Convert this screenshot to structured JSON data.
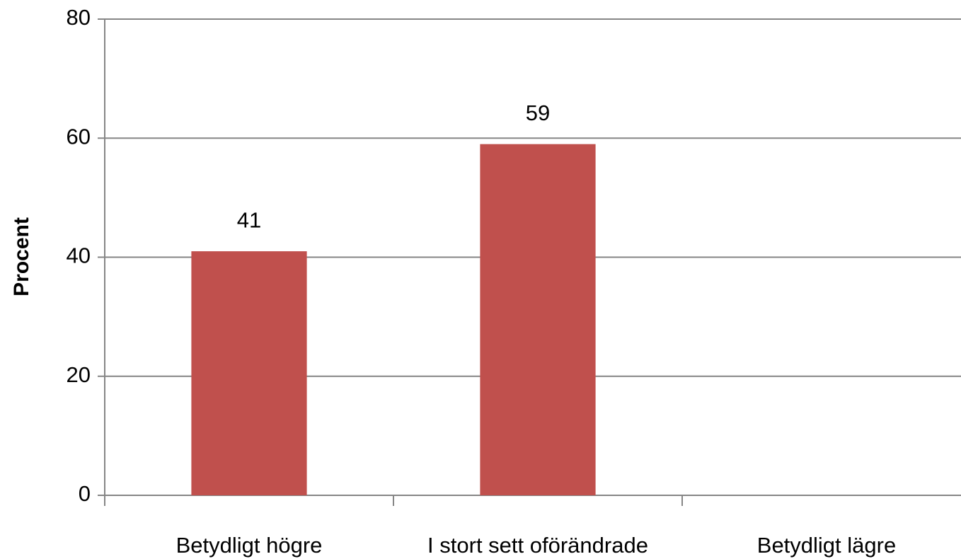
{
  "chart_data": {
    "type": "bar",
    "y_label": "Procent",
    "categories": [
      "Betydligt högre",
      "I stort sett oförändrade",
      "Betydligt lägre"
    ],
    "values": [
      41,
      59,
      null
    ],
    "color": "#c0504d",
    "ylim": [
      0,
      80
    ],
    "yticks": [
      0,
      20,
      40,
      60,
      80
    ],
    "grid": true
  }
}
